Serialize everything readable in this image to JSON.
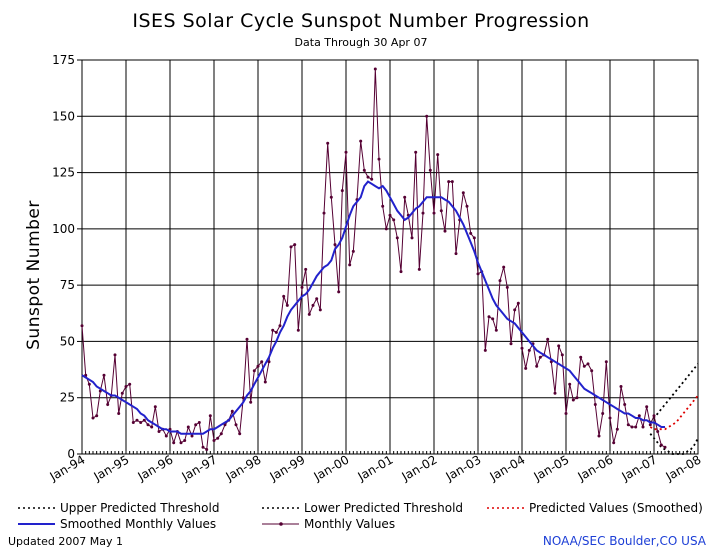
{
  "chart_data": {
    "type": "line",
    "title": "ISES Solar Cycle Sunspot Number Progression",
    "subtitle": "Data Through 30 Apr 07",
    "xlabel": "",
    "ylabel": "Sunspot Number",
    "ylim": [
      0,
      175
    ],
    "yticks": [
      0,
      25,
      50,
      75,
      100,
      125,
      150,
      175
    ],
    "xticks": [
      "Jan-94",
      "Jan-95",
      "Jan-96",
      "Jan-97",
      "Jan-98",
      "Jan-99",
      "Jan-00",
      "Jan-01",
      "Jan-02",
      "Jan-03",
      "Jan-04",
      "Jan-05",
      "Jan-06",
      "Jan-07",
      "Jan-08"
    ],
    "xlim": [
      1994.0,
      2008.0
    ],
    "grid": true,
    "legend": {
      "upper": "Upper Predicted Threshold",
      "lower": "Lower Predicted Threshold",
      "predicted": "Predicted Values (Smoothed)",
      "smoothed": "Smoothed Monthly Values",
      "monthly": "Monthly Values"
    },
    "colors": {
      "smoothed": "#2222cc",
      "monthly": "#550033",
      "predicted": "#dd0000",
      "threshold": "#000000",
      "grid": "#000000",
      "credit": "#1d3fd6"
    },
    "start": "1994-01",
    "monthly_values": [
      57,
      35,
      31,
      16,
      17,
      28,
      35,
      22,
      26,
      44,
      18,
      27,
      30,
      31,
      14,
      15,
      14,
      15,
      13,
      12,
      21,
      10,
      11,
      8,
      11,
      5,
      10,
      5,
      6,
      12,
      8,
      13,
      14,
      3,
      2,
      17,
      6,
      7,
      9,
      13,
      15,
      19,
      13,
      9,
      25,
      51,
      23,
      37,
      39,
      41,
      32,
      41,
      55,
      54,
      57,
      70,
      66,
      92,
      93,
      55,
      74,
      82,
      62,
      66,
      69,
      64,
      107,
      138,
      114,
      93,
      72,
      117,
      134,
      84,
      90,
      113,
      139,
      126,
      123,
      122,
      171,
      131,
      110,
      100,
      106,
      104,
      96,
      81,
      114,
      106,
      96,
      134,
      82,
      107,
      150,
      126,
      107,
      133,
      108,
      99,
      121,
      121,
      89,
      104,
      116,
      110,
      98,
      96,
      80,
      81,
      46,
      61,
      60,
      55,
      77,
      83,
      74,
      49,
      64,
      67,
      47,
      38,
      46,
      49,
      39,
      43,
      44,
      51,
      41,
      27,
      48,
      44,
      18,
      31,
      24,
      25,
      43,
      39,
      40,
      37,
      22,
      8,
      18,
      41,
      16,
      5,
      11,
      30,
      22,
      13,
      12,
      12,
      17,
      12,
      21,
      13,
      17,
      10,
      4,
      3
    ],
    "smoothed_values": [
      35,
      34,
      33,
      32,
      30,
      29,
      28,
      27,
      26,
      26,
      25,
      24,
      23,
      22,
      21,
      20,
      18,
      17,
      15,
      14,
      13,
      12,
      11,
      11,
      10,
      10,
      10,
      9,
      9,
      9,
      9,
      9,
      9,
      9,
      10,
      11,
      11,
      12,
      13,
      14,
      15,
      17,
      19,
      21,
      23,
      26,
      28,
      31,
      34,
      37,
      40,
      43,
      47,
      50,
      54,
      57,
      61,
      64,
      66,
      68,
      70,
      71,
      73,
      76,
      79,
      81,
      83,
      84,
      86,
      91,
      93,
      96,
      101,
      106,
      110,
      112,
      114,
      119,
      121,
      120,
      119,
      118,
      119,
      117,
      114,
      111,
      108,
      106,
      104,
      105,
      107,
      109,
      110,
      112,
      114,
      114,
      114,
      114,
      114,
      113,
      112,
      110,
      108,
      105,
      102,
      98,
      94,
      90,
      85,
      81,
      77,
      73,
      69,
      66,
      64,
      62,
      60,
      59,
      58,
      56,
      54,
      52,
      50,
      48,
      46,
      45,
      44,
      43,
      42,
      41,
      40,
      39,
      38,
      37,
      35,
      33,
      31,
      29,
      28,
      27,
      26,
      25,
      24,
      23,
      22,
      21,
      20,
      19,
      18,
      18,
      17,
      16,
      16,
      15,
      15,
      14,
      14,
      13,
      12,
      12
    ],
    "predicted_values": [
      12,
      11,
      11,
      11,
      11,
      12,
      13,
      14,
      16,
      18,
      20,
      22,
      24,
      26
    ],
    "upper_threshold": [
      14,
      16,
      18,
      20,
      22,
      24,
      26,
      28,
      30,
      32,
      34,
      36,
      38,
      40
    ],
    "lower_threshold": [
      9,
      7,
      5,
      3,
      2,
      1,
      0,
      0,
      0,
      0,
      1,
      2,
      4,
      7
    ],
    "prediction_start": "2006-12"
  },
  "footer": {
    "updated": "Updated 2007 May  1",
    "credit": "NOAA/SEC Boulder,CO USA"
  }
}
